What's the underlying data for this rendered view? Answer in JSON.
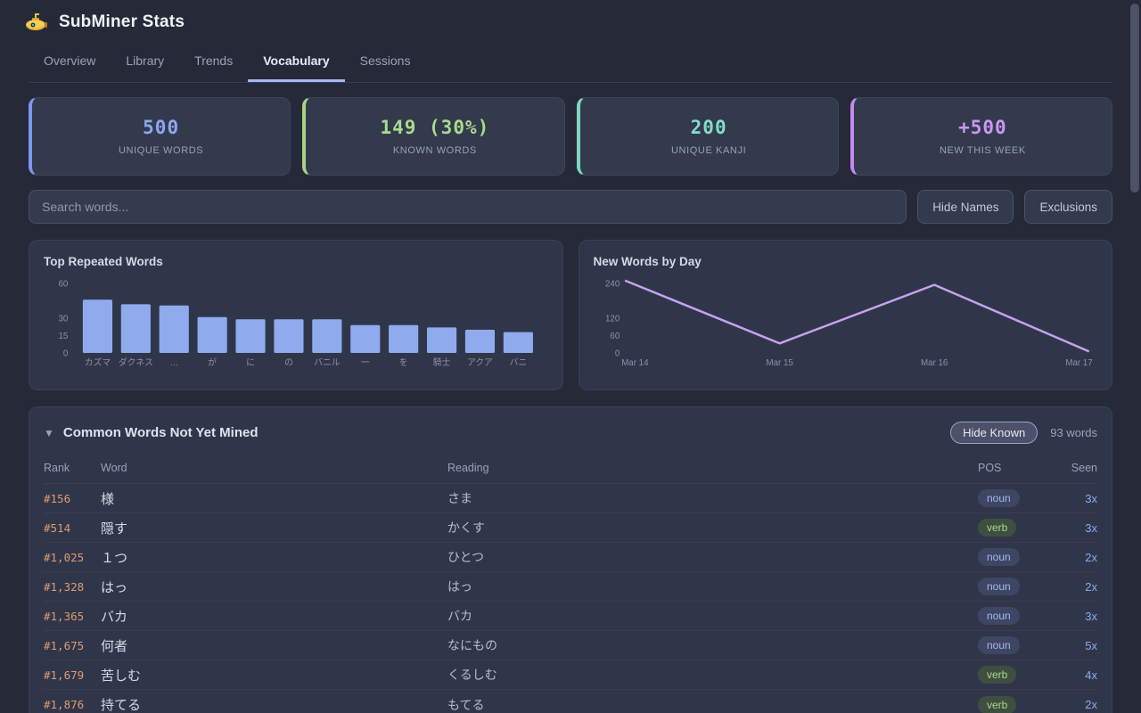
{
  "header": {
    "title": "SubMiner Stats",
    "icon": "yellow-submarine"
  },
  "tabs": [
    {
      "label": "Overview",
      "active": false
    },
    {
      "label": "Library",
      "active": false
    },
    {
      "label": "Trends",
      "active": false
    },
    {
      "label": "Vocabulary",
      "active": true
    },
    {
      "label": "Sessions",
      "active": false
    }
  ],
  "stats": [
    {
      "value": "500",
      "label": "UNIQUE WORDS",
      "color": "#8da7f2",
      "accent": "#7d97ee"
    },
    {
      "value": "149 (30%)",
      "label": "KNOWN WORDS",
      "color": "#a9db8e",
      "accent": "#a2d584"
    },
    {
      "value": "200",
      "label": "UNIQUE KANJI",
      "color": "#85dcc8",
      "accent": "#7cd6c0"
    },
    {
      "value": "+500",
      "label": "NEW THIS WEEK",
      "color": "#cb96f4",
      "accent": "#c289f2"
    }
  ],
  "controls": {
    "search_placeholder": "Search words...",
    "search_value": "",
    "hide_names_label": "Hide Names",
    "exclusions_label": "Exclusions"
  },
  "chart_data": [
    {
      "type": "bar",
      "title": "Top Repeated Words",
      "categories": [
        "カズマ",
        "ダクネス",
        "…",
        "が",
        "に",
        "の",
        "バニル",
        "一",
        "を",
        "騎士",
        "アクア",
        "バニ"
      ],
      "values": [
        46,
        42,
        41,
        31,
        29,
        29,
        29,
        24,
        24,
        22,
        20,
        18
      ],
      "yticks": [
        0,
        15,
        30,
        60
      ],
      "ylim": [
        0,
        60
      ],
      "bar_color": "#8fabee",
      "tick_color": "#8b92a8",
      "grid": false,
      "legend": "none"
    },
    {
      "type": "line",
      "title": "New Words by Day",
      "x": [
        "Mar 14",
        "Mar 15",
        "Mar 16",
        "Mar 17"
      ],
      "values": [
        250,
        33,
        235,
        5
      ],
      "yticks": [
        0,
        60,
        120,
        240
      ],
      "ylim": [
        0,
        250
      ],
      "line_color": "#c6a2ef",
      "tick_color": "#8b92a8",
      "grid": false,
      "legend": "none"
    }
  ],
  "table": {
    "title": "Common Words Not Yet Mined",
    "collapse_icon": "triangle-down",
    "hide_known_label": "Hide Known",
    "count_label": "93 words",
    "columns": [
      "Rank",
      "Word",
      "Reading",
      "POS",
      "Seen"
    ],
    "rows": [
      {
        "rank": "#156",
        "word": "様",
        "reading": "さま",
        "pos": "noun",
        "seen": "3x"
      },
      {
        "rank": "#514",
        "word": "隠す",
        "reading": "かくす",
        "pos": "verb",
        "seen": "3x"
      },
      {
        "rank": "#1,025",
        "word": "１つ",
        "reading": "ひとつ",
        "pos": "noun",
        "seen": "2x"
      },
      {
        "rank": "#1,328",
        "word": "はっ",
        "reading": "はっ",
        "pos": "noun",
        "seen": "2x"
      },
      {
        "rank": "#1,365",
        "word": "バカ",
        "reading": "バカ",
        "pos": "noun",
        "seen": "3x"
      },
      {
        "rank": "#1,675",
        "word": "何者",
        "reading": "なにもの",
        "pos": "noun",
        "seen": "5x"
      },
      {
        "rank": "#1,679",
        "word": "苦しむ",
        "reading": "くるしむ",
        "pos": "verb",
        "seen": "4x"
      },
      {
        "rank": "#1,876",
        "word": "持てる",
        "reading": "もてる",
        "pos": "verb",
        "seen": "2x"
      }
    ]
  }
}
